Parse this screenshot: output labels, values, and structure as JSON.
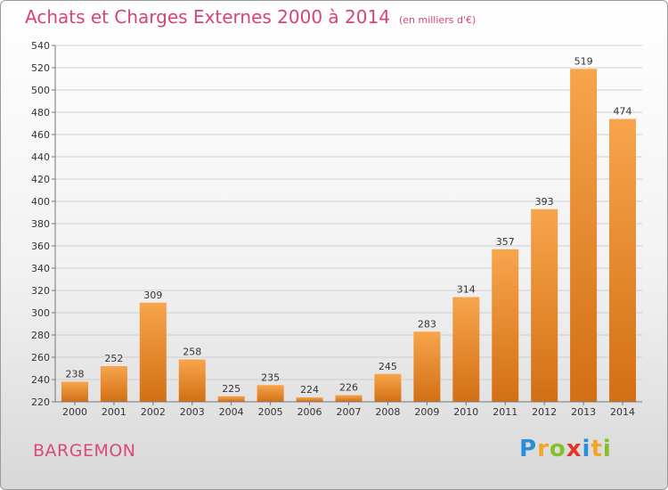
{
  "title": "Achats et Charges Externes 2000 à 2014",
  "subtitle": "(en milliers d'€)",
  "commune": "BARGEMON",
  "logo": "Proxiti",
  "colors": {
    "bar_top": "#f7a54c",
    "bar_bottom": "#d36f14",
    "title": "#d8427a"
  },
  "chart_data": {
    "type": "bar",
    "title": "Achats et Charges Externes 2000 à 2014",
    "subtitle": "(en milliers d'€)",
    "categories": [
      "2000",
      "2001",
      "2002",
      "2003",
      "2004",
      "2005",
      "2006",
      "2007",
      "2008",
      "2009",
      "2010",
      "2011",
      "2012",
      "2013",
      "2014"
    ],
    "values": [
      238,
      252,
      309,
      258,
      225,
      235,
      224,
      226,
      245,
      283,
      314,
      357,
      393,
      519,
      474
    ],
    "ylim": [
      220,
      540
    ],
    "yticks": [
      220,
      240,
      260,
      280,
      300,
      320,
      340,
      360,
      380,
      400,
      420,
      440,
      460,
      480,
      500,
      520,
      540
    ],
    "grid": true,
    "legend": "none"
  }
}
